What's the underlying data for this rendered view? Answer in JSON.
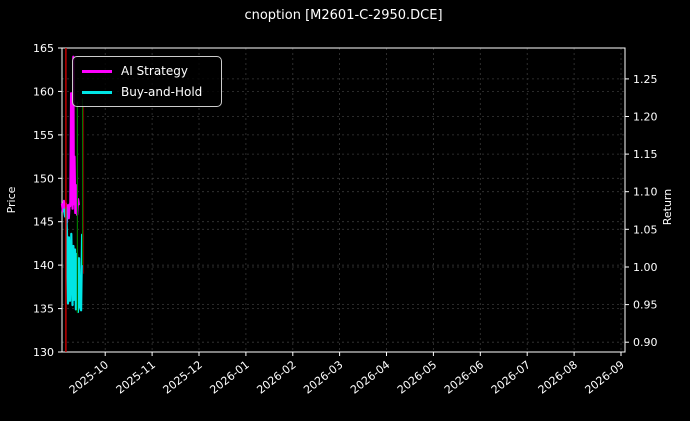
{
  "title": "cnoption [M2601-C-2950.DCE]",
  "colors": {
    "background": "#000000",
    "foreground": "#ffffff",
    "grid": "#383838",
    "ai_strategy": "#ff00ff",
    "buy_and_hold": "#00e5e5",
    "sell_signal_red": "#cc0000",
    "buy_signal_green": "#007700"
  },
  "chart_data": {
    "type": "line",
    "title": "cnoption [M2601-C-2950.DCE]",
    "legend_position": "upper-left",
    "grid": "dashed",
    "x_axis": {
      "label": "",
      "unit": "days-from-start",
      "range": [
        0,
        365
      ],
      "tick_days": [
        28,
        58.4,
        88.8,
        119.2,
        149.6,
        180,
        210.4,
        240.8,
        271.2,
        301.6,
        332,
        362.4
      ],
      "tick_labels": [
        "2025-10",
        "2025-11",
        "2025-12",
        "2026-01",
        "2026-02",
        "2026-03",
        "2026-04",
        "2026-05",
        "2026-06",
        "2026-07",
        "2026-08",
        "2026-09"
      ],
      "tick_rotation_deg": -38
    },
    "left_axis": {
      "label": "Price",
      "range": [
        130,
        165
      ],
      "ticks": [
        "130",
        "135",
        "140",
        "145",
        "150",
        "155",
        "160",
        "165"
      ]
    },
    "right_axis": {
      "label": "Return",
      "range": [
        0.887,
        1.291
      ],
      "ticks": [
        "0.90",
        "0.95",
        "1.00",
        "1.05",
        "1.10",
        "1.15",
        "1.20",
        "1.25"
      ]
    },
    "series": [
      {
        "name": "AI Strategy",
        "color": "#ff00ff",
        "width": 2.2,
        "axis": "left",
        "points": [
          [
            0,
            147.0
          ],
          [
            0.6,
            146.2
          ],
          [
            1.2,
            147.4
          ],
          [
            1.9,
            145.9
          ],
          [
            2.5,
            147.1
          ],
          [
            3.1,
            144.9
          ],
          [
            3.8,
            146.9
          ],
          [
            4.4,
            145.4
          ],
          [
            4.9,
            147.0
          ],
          [
            5.4,
            146.8
          ],
          [
            5.9,
            159.8
          ],
          [
            6.3,
            147.0
          ],
          [
            6.6,
            153.0
          ],
          [
            6.9,
            146.5
          ],
          [
            7.3,
            164.0
          ],
          [
            7.7,
            147.0
          ],
          [
            8.1,
            152.5
          ],
          [
            8.6,
            146.0
          ],
          [
            9.2,
            149.2
          ],
          [
            9.8,
            145.8
          ],
          [
            10.4,
            147.6
          ],
          [
            10.9,
            147.0
          ]
        ]
      },
      {
        "name": "Buy-and-Hold",
        "color": "#00e5e5",
        "width": 2.2,
        "axis": "left",
        "points": [
          [
            1.3,
            146.4
          ],
          [
            2.0,
            145.6
          ],
          [
            2.6,
            146.6
          ],
          [
            3.2,
            144.0
          ],
          [
            3.9,
            135.6
          ],
          [
            4.5,
            143.2
          ],
          [
            5.2,
            135.9
          ],
          [
            6.0,
            143.6
          ],
          [
            6.8,
            135.4
          ],
          [
            7.4,
            142.2
          ],
          [
            7.8,
            136.0
          ],
          [
            8.4,
            141.8
          ],
          [
            9.0,
            134.9
          ],
          [
            9.7,
            141.3
          ],
          [
            10.4,
            134.6
          ],
          [
            11.0,
            140.8
          ],
          [
            11.7,
            135.2
          ],
          [
            12.4,
            134.8
          ],
          [
            13.0,
            143.5
          ]
        ]
      }
    ],
    "vlines": [
      {
        "name": "signal-red-1",
        "color": "#cc0000",
        "width": 1.4,
        "day": 2.5,
        "price_from": 130.0,
        "price_to": 165.0
      },
      {
        "name": "signal-green-1",
        "color": "#007700",
        "width": 1.2,
        "day": 10.0,
        "price_from": 134.5,
        "price_to": 158.8
      },
      {
        "name": "signal-green-2",
        "color": "#007700",
        "width": 1.0,
        "day": 13.3,
        "price_from": 140.0,
        "price_to": 159.2
      },
      {
        "name": "signal-red-2",
        "color": "#7a0000",
        "width": 1.0,
        "day": 14.0,
        "price_from": 139.0,
        "price_to": 158.3
      }
    ]
  }
}
